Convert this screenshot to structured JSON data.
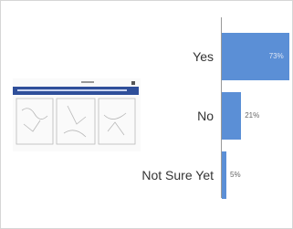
{
  "chart_data": {
    "type": "bar",
    "orientation": "horizontal",
    "categories": [
      "Yes",
      "No",
      "Not Sure Yet"
    ],
    "values": [
      73,
      21,
      5
    ],
    "value_labels": [
      "73%",
      "21%",
      "5%"
    ],
    "color": "#5b8fd6"
  }
}
